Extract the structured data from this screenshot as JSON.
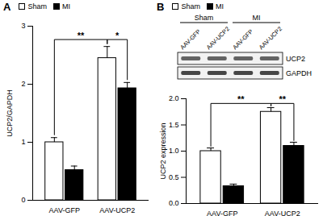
{
  "chart_data": [
    {
      "type": "bar",
      "title": "A",
      "ylabel": "UCP2/GAPDH",
      "categories": [
        "AAV-GFP",
        "AAV-UCP2"
      ],
      "series": [
        {
          "name": "Sham",
          "color": "#ffffff",
          "values": [
            1.0,
            2.45
          ],
          "errors": [
            0.08,
            0.2
          ]
        },
        {
          "name": "MI",
          "color": "#000000",
          "values": [
            0.52,
            1.93
          ],
          "errors": [
            0.07,
            0.1
          ]
        }
      ],
      "ylim": [
        0,
        3
      ],
      "yticks": [
        0,
        1,
        2,
        3
      ],
      "legend": "top",
      "annotations": [
        {
          "text": "**",
          "from": {
            "category": "AAV-GFP",
            "series": "Sham"
          },
          "to": {
            "category": "AAV-UCP2",
            "series": "Sham"
          }
        },
        {
          "text": "*",
          "from": {
            "category": "AAV-UCP2",
            "series": "Sham"
          },
          "to": {
            "category": "AAV-UCP2",
            "series": "MI"
          }
        }
      ]
    },
    {
      "type": "bar",
      "title": "B",
      "ylabel": "UCP2 expression",
      "categories": [
        "AAV-GFP",
        "AAV-UCP2"
      ],
      "series": [
        {
          "name": "Sham",
          "color": "#ffffff",
          "values": [
            1.0,
            1.75
          ],
          "errors": [
            0.06,
            0.08
          ]
        },
        {
          "name": "MI",
          "color": "#000000",
          "values": [
            0.33,
            1.1
          ],
          "errors": [
            0.04,
            0.07
          ]
        }
      ],
      "ylim": [
        0,
        2
      ],
      "yticks": [
        {
          "value": 0,
          "label": "0.0"
        },
        0.5,
        {
          "value": 1,
          "label": "1.0"
        },
        1.5,
        {
          "value": 2,
          "label": "2.0"
        }
      ],
      "legend": "top",
      "annotations": [
        {
          "text": "**",
          "from": {
            "category": "AAV-GFP",
            "series": "Sham"
          },
          "to": {
            "category": "AAV-UCP2",
            "series": "Sham"
          }
        },
        {
          "text": "**",
          "from": {
            "category": "AAV-UCP2",
            "series": "Sham"
          },
          "to": {
            "category": "AAV-UCP2",
            "series": "MI"
          }
        }
      ]
    }
  ],
  "blot": {
    "groups": [
      {
        "label": "Sham",
        "lanes": [
          "AAV-GFP",
          "AAV-UCP2"
        ]
      },
      {
        "label": "MI",
        "lanes": [
          "AAV-GFP",
          "AAV-UCP2"
        ]
      }
    ],
    "rows": [
      "UCP2",
      "GAPDH"
    ]
  }
}
